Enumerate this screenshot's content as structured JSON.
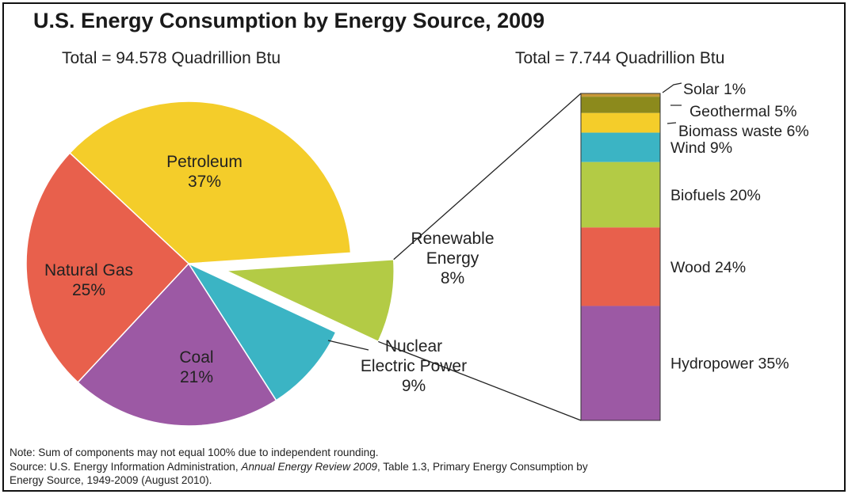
{
  "chart_data": {
    "type": "pie",
    "title": "U.S. Energy Consumption by Energy Source, 2009",
    "colors": {
      "petroleum": "#f4cd2a",
      "natural_gas": "#e8604c",
      "coal": "#9c59a4",
      "nuclear": "#3bb4c4",
      "renewable": "#b3cb45",
      "solar": "#c89838",
      "geothermal": "#8c8a1c",
      "biomass": "#f4cd2a",
      "wind": "#3bb4c4",
      "biofuels": "#b3cb45",
      "wood": "#e8604c",
      "hydropower": "#9c59a4"
    },
    "pie": {
      "total_label": "Total = 94.578 Quadrillion Btu",
      "slices": [
        {
          "key": "petroleum",
          "name": "Petroleum",
          "value": 37,
          "label_pct": "37%"
        },
        {
          "key": "renewable",
          "name": "Renewable Energy",
          "value": 8,
          "label_pct": "8%",
          "exploded": true
        },
        {
          "key": "nuclear",
          "name": "Nuclear Electric Power",
          "value": 9,
          "label_pct": "9%"
        },
        {
          "key": "coal",
          "name": "Coal",
          "value": 21,
          "label_pct": "21%"
        },
        {
          "key": "natural_gas",
          "name": "Natural Gas",
          "value": 25,
          "label_pct": "25%"
        }
      ]
    },
    "stack": {
      "total_label": "Total = 7.744 Quadrillion Btu",
      "segments": [
        {
          "key": "solar",
          "label": "Solar 1%",
          "value": 1
        },
        {
          "key": "geothermal",
          "label": "Geothermal 5%",
          "value": 5
        },
        {
          "key": "biomass",
          "label": "Biomass waste 6%",
          "value": 6
        },
        {
          "key": "wind",
          "label": "Wind 9%",
          "value": 9
        },
        {
          "key": "biofuels",
          "label": "Biofuels 20%",
          "value": 20
        },
        {
          "key": "wood",
          "label": "Wood 24%",
          "value": 24
        },
        {
          "key": "hydropower",
          "label": "Hydropower 35%",
          "value": 35
        }
      ]
    }
  },
  "notes": {
    "note": "Note: Sum of components may not equal 100% due to independent rounding.",
    "source_prefix": "Source: U.S. Energy Information Administration,",
    "source_title": "Annual Energy Review 2009",
    "source_suffix": ", Table 1.3, Primary Energy Consumption by",
    "source_line2": "Energy Source, 1949-2009 (August 2010)."
  }
}
